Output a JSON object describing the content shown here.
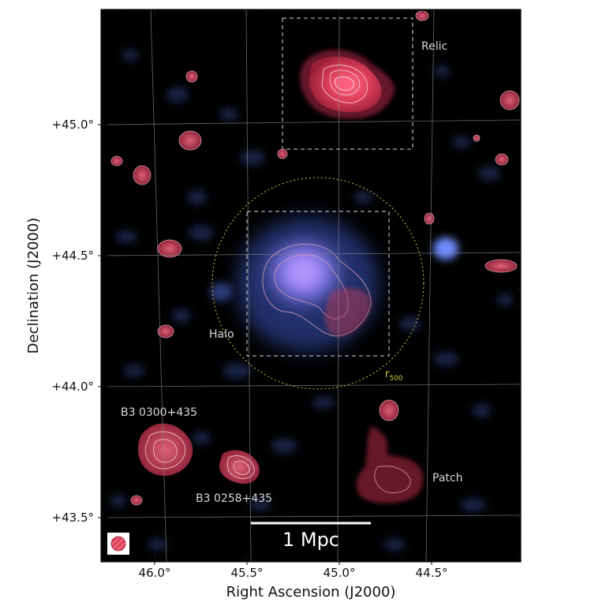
{
  "axes": {
    "x_title": "Right Ascension (J2000)",
    "y_title": "Declination (J2000)",
    "x_ticks": [
      "46.0°",
      "45.5°",
      "45.0°",
      "44.5°"
    ],
    "y_ticks": [
      "+45.0°",
      "+44.5°",
      "+44.0°",
      "+43.5°"
    ]
  },
  "annotations": {
    "relic": "Relic",
    "halo": "Halo",
    "r500_main": "r",
    "r500_sub": "500",
    "source1": "B3 0300+435",
    "source2": "B3 0258+435",
    "patch": "Patch"
  },
  "scale_bar": {
    "label": "1 Mpc"
  },
  "colors": {
    "background": "#000000",
    "radio": "#e0405a",
    "xray": "#5c7cf0",
    "circle": "#d4c64a",
    "grid": "#8a8a8a"
  }
}
